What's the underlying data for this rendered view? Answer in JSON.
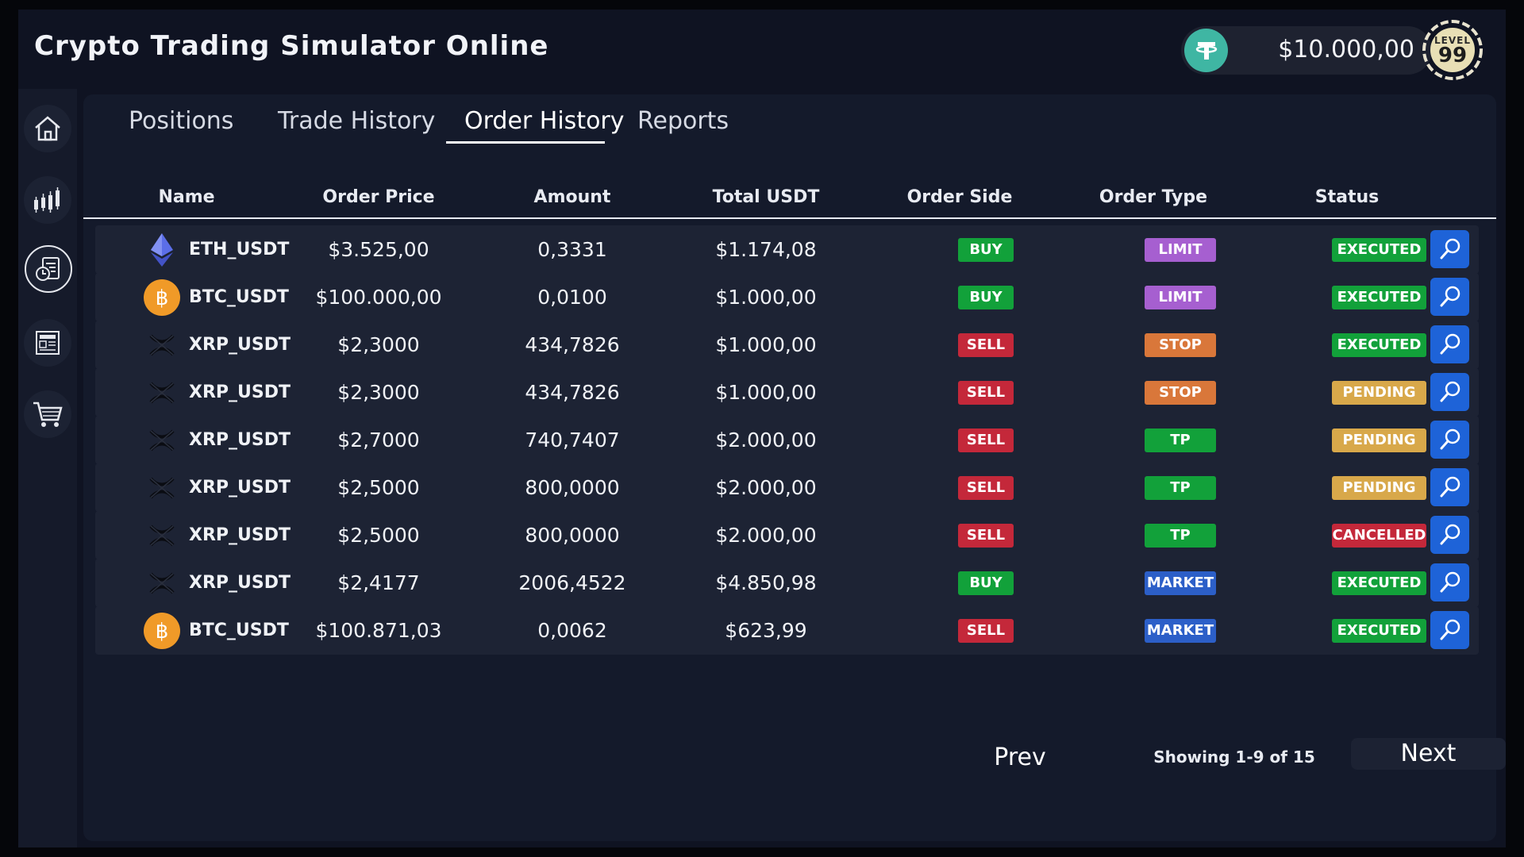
{
  "app": {
    "title": "Crypto Trading Simulator Online",
    "balance": "$10.000,00",
    "level_label": "LEVEL",
    "level_value": "99"
  },
  "sidebar": {
    "items": [
      {
        "name": "home",
        "icon": "home-icon"
      },
      {
        "name": "chart",
        "icon": "candlestick-chart-icon"
      },
      {
        "name": "history",
        "icon": "orders-clock-icon"
      },
      {
        "name": "news",
        "icon": "news-icon"
      },
      {
        "name": "shop",
        "icon": "shopping-cart-icon"
      }
    ],
    "active": "history"
  },
  "tabs": [
    {
      "label": "Positions"
    },
    {
      "label": "Trade History"
    },
    {
      "label": "Order History"
    },
    {
      "label": "Reports"
    }
  ],
  "active_tab": "Order History",
  "table": {
    "columns": [
      "Name",
      "Order Price",
      "Amount",
      "Total USDT",
      "Order Side",
      "Order Type",
      "Status"
    ],
    "rows": [
      {
        "coin": "eth",
        "name": "ETH_USDT",
        "price": "$3.525,00",
        "amount": "0,3331",
        "total": "$1.174,08",
        "side": "BUY",
        "type": "LIMIT",
        "status": "EXECUTED"
      },
      {
        "coin": "btc",
        "name": "BTC_USDT",
        "price": "$100.000,00",
        "amount": "0,0100",
        "total": "$1.000,00",
        "side": "BUY",
        "type": "LIMIT",
        "status": "EXECUTED"
      },
      {
        "coin": "xrp",
        "name": "XRP_USDT",
        "price": "$2,3000",
        "amount": "434,7826",
        "total": "$1.000,00",
        "side": "SELL",
        "type": "STOP",
        "status": "EXECUTED"
      },
      {
        "coin": "xrp",
        "name": "XRP_USDT",
        "price": "$2,3000",
        "amount": "434,7826",
        "total": "$1.000,00",
        "side": "SELL",
        "type": "STOP",
        "status": "PENDING"
      },
      {
        "coin": "xrp",
        "name": "XRP_USDT",
        "price": "$2,7000",
        "amount": "740,7407",
        "total": "$2.000,00",
        "side": "SELL",
        "type": "TP",
        "status": "PENDING"
      },
      {
        "coin": "xrp",
        "name": "XRP_USDT",
        "price": "$2,5000",
        "amount": "800,0000",
        "total": "$2.000,00",
        "side": "SELL",
        "type": "TP",
        "status": "PENDING"
      },
      {
        "coin": "xrp",
        "name": "XRP_USDT",
        "price": "$2,5000",
        "amount": "800,0000",
        "total": "$2.000,00",
        "side": "SELL",
        "type": "TP",
        "status": "CANCELLED"
      },
      {
        "coin": "xrp",
        "name": "XRP_USDT",
        "price": "$2,4177",
        "amount": "2006,4522",
        "total": "$4.850,98",
        "side": "BUY",
        "type": "MARKET",
        "status": "EXECUTED"
      },
      {
        "coin": "btc",
        "name": "BTC_USDT",
        "price": "$100.871,03",
        "amount": "0,0062",
        "total": "$623,99",
        "side": "SELL",
        "type": "MARKET",
        "status": "EXECUTED"
      }
    ]
  },
  "pagination": {
    "prev_label": "Prev",
    "next_label": "Next",
    "info": "Showing 1-9 of 15"
  },
  "colors": {
    "buy": "#12a13a",
    "sell": "#c4283a",
    "limit": "#a65fd0",
    "stop": "#d9773a",
    "tp": "#12a13a",
    "market": "#2c5fc8",
    "executed": "#12a13a",
    "pending": "#d8a84a",
    "cancelled": "#c4283a",
    "accent": "#1e63d8"
  }
}
